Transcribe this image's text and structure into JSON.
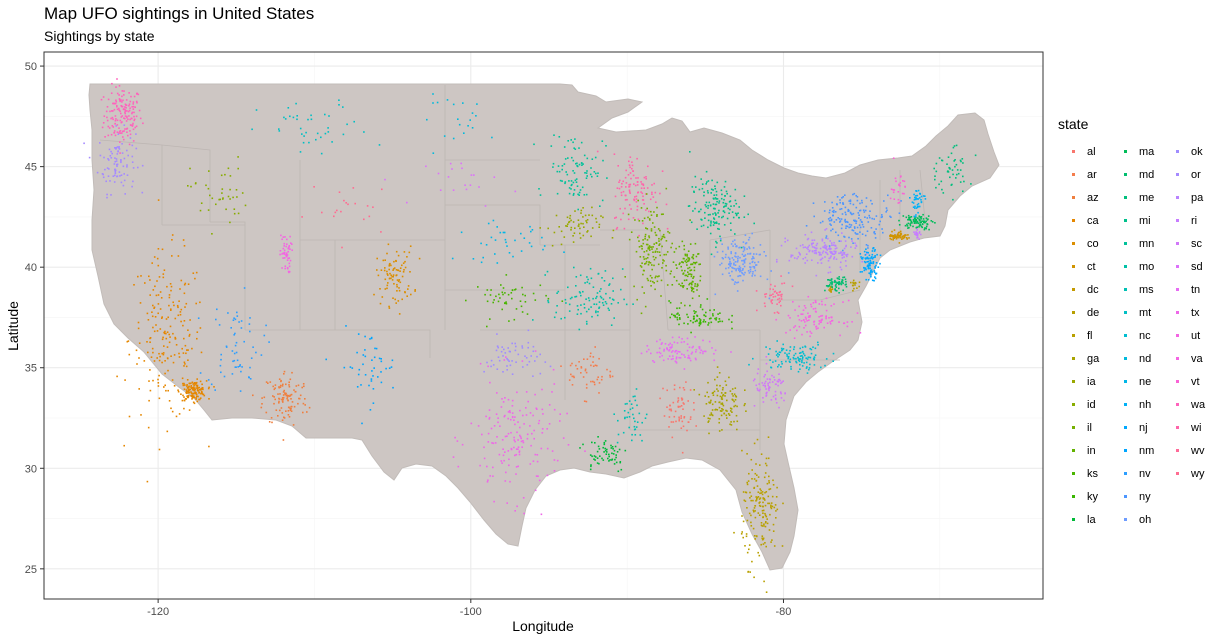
{
  "header": {
    "title": "Map UFO sightings in United States",
    "subtitle": "Sightings by state"
  },
  "axes": {
    "xlabel": "Longitude",
    "ylabel": "Latitude"
  },
  "colors": {
    "land": "#cdc6c3",
    "border": "#c2bcb9",
    "panel_border": "#333333",
    "grid_major": "#ebebeb",
    "grid_minor": "#f5f5f5"
  },
  "legend": {
    "title": "state",
    "columns": [
      [
        {
          "label": "al",
          "color": "#F8766D"
        },
        {
          "label": "ar",
          "color": "#F47D4D"
        },
        {
          "label": "az",
          "color": "#EF7F3E"
        },
        {
          "label": "ca",
          "color": "#E58700"
        },
        {
          "label": "co",
          "color": "#DB8E00"
        },
        {
          "label": "ct",
          "color": "#D09400"
        },
        {
          "label": "dc",
          "color": "#C49A00"
        },
        {
          "label": "de",
          "color": "#B79F00"
        },
        {
          "label": "fl",
          "color": "#B8A000"
        },
        {
          "label": "ga",
          "color": "#A9A400"
        },
        {
          "label": "ia",
          "color": "#99A800"
        },
        {
          "label": "id",
          "color": "#88AC00"
        },
        {
          "label": "il",
          "color": "#76B000"
        },
        {
          "label": "in",
          "color": "#62B200"
        },
        {
          "label": "ks",
          "color": "#49B500"
        },
        {
          "label": "ky",
          "color": "#39B600"
        },
        {
          "label": "la",
          "color": "#00BA38"
        }
      ],
      [
        {
          "label": "ma",
          "color": "#00BC59"
        },
        {
          "label": "md",
          "color": "#00BD6F"
        },
        {
          "label": "me",
          "color": "#00BF7D"
        },
        {
          "label": "mi",
          "color": "#00C08B"
        },
        {
          "label": "mn",
          "color": "#00C19A"
        },
        {
          "label": "mo",
          "color": "#00C1A7"
        },
        {
          "label": "ms",
          "color": "#00C0B4"
        },
        {
          "label": "mt",
          "color": "#00BFC4"
        },
        {
          "label": "nc",
          "color": "#00BDD0"
        },
        {
          "label": "nd",
          "color": "#00BADC"
        },
        {
          "label": "ne",
          "color": "#00B6E7"
        },
        {
          "label": "nh",
          "color": "#00B0F6"
        },
        {
          "label": "nj",
          "color": "#00A9FF"
        },
        {
          "label": "nm",
          "color": "#00A5FF"
        },
        {
          "label": "nv",
          "color": "#2C9EFF"
        },
        {
          "label": "ny",
          "color": "#4C96FF"
        },
        {
          "label": "oh",
          "color": "#6D9CFF"
        }
      ],
      [
        {
          "label": "ok",
          "color": "#9F8CFF"
        },
        {
          "label": "or",
          "color": "#A58AFF"
        },
        {
          "label": "pa",
          "color": "#B983FF"
        },
        {
          "label": "ri",
          "color": "#C77CFF"
        },
        {
          "label": "sc",
          "color": "#D177F8"
        },
        {
          "label": "sd",
          "color": "#DC71FA"
        },
        {
          "label": "tn",
          "color": "#E76BF3"
        },
        {
          "label": "tx",
          "color": "#EE67E8"
        },
        {
          "label": "ut",
          "color": "#F365E2"
        },
        {
          "label": "va",
          "color": "#F564E3"
        },
        {
          "label": "vt",
          "color": "#FA62D5"
        },
        {
          "label": "wa",
          "color": "#FF62BC"
        },
        {
          "label": "wi",
          "color": "#FF65AA"
        },
        {
          "label": "wv",
          "color": "#FF6A98"
        },
        {
          "label": "wy",
          "color": "#FF6C91"
        }
      ]
    ]
  },
  "chart_data": {
    "type": "scatter",
    "title": "Map UFO sightings in United States",
    "subtitle": "Sightings by state",
    "xlabel": "Longitude",
    "ylabel": "Latitude",
    "xlim": [
      -127.3,
      -63.4
    ],
    "ylim": [
      23.5,
      50.7
    ],
    "x_ticks": [
      -120,
      -100,
      -80
    ],
    "y_ticks": [
      25,
      30,
      35,
      40,
      45,
      50
    ],
    "grid": true,
    "legend_position": "right",
    "clusters": [
      {
        "state": "wa",
        "lon": -122.3,
        "lat": 47.6,
        "spread": [
          1.0,
          1.2
        ],
        "n": 160
      },
      {
        "state": "or",
        "lon": -122.7,
        "lat": 45.3,
        "spread": [
          1.0,
          1.3
        ],
        "n": 90
      },
      {
        "state": "ca",
        "lon": -119.5,
        "lat": 36.5,
        "spread": [
          2.0,
          3.5
        ],
        "n": 200
      },
      {
        "state": "ca",
        "lon": -117.8,
        "lat": 33.9,
        "spread": [
          0.7,
          0.4
        ],
        "n": 140
      },
      {
        "state": "az",
        "lon": -111.9,
        "lat": 33.5,
        "spread": [
          1.2,
          1.2
        ],
        "n": 110
      },
      {
        "state": "nv",
        "lon": -115.1,
        "lat": 36.2,
        "spread": [
          1.5,
          2.0
        ],
        "n": 60
      },
      {
        "state": "ut",
        "lon": -111.9,
        "lat": 40.7,
        "spread": [
          0.3,
          0.8
        ],
        "n": 50
      },
      {
        "state": "id",
        "lon": -116.2,
        "lat": 43.7,
        "spread": [
          1.5,
          1.5
        ],
        "n": 40
      },
      {
        "state": "mt",
        "lon": -110.0,
        "lat": 46.8,
        "spread": [
          3.0,
          1.2
        ],
        "n": 40
      },
      {
        "state": "co",
        "lon": -104.9,
        "lat": 39.6,
        "spread": [
          1.0,
          1.2
        ],
        "n": 90
      },
      {
        "state": "nm",
        "lon": -106.6,
        "lat": 35.1,
        "spread": [
          1.5,
          1.5
        ],
        "n": 45
      },
      {
        "state": "wy",
        "lon": -107.5,
        "lat": 42.9,
        "spread": [
          2.5,
          1.2
        ],
        "n": 20
      },
      {
        "state": "nd",
        "lon": -100.4,
        "lat": 47.4,
        "spread": [
          2.5,
          1.0
        ],
        "n": 20
      },
      {
        "state": "sd",
        "lon": -99.9,
        "lat": 44.3,
        "spread": [
          2.5,
          1.0
        ],
        "n": 20
      },
      {
        "state": "ne",
        "lon": -98.0,
        "lat": 41.3,
        "spread": [
          2.5,
          0.8
        ],
        "n": 35
      },
      {
        "state": "ks",
        "lon": -97.5,
        "lat": 38.5,
        "spread": [
          2.0,
          0.8
        ],
        "n": 50
      },
      {
        "state": "ok",
        "lon": -97.4,
        "lat": 35.5,
        "spread": [
          1.5,
          0.9
        ],
        "n": 55
      },
      {
        "state": "tx",
        "lon": -97.2,
        "lat": 31.5,
        "spread": [
          2.5,
          2.5
        ],
        "n": 170
      },
      {
        "state": "mn",
        "lon": -93.3,
        "lat": 45.0,
        "spread": [
          1.5,
          1.5
        ],
        "n": 90
      },
      {
        "state": "ia",
        "lon": -93.5,
        "lat": 42.0,
        "spread": [
          1.5,
          0.8
        ],
        "n": 60
      },
      {
        "state": "mo",
        "lon": -92.5,
        "lat": 38.5,
        "spread": [
          1.8,
          1.2
        ],
        "n": 100
      },
      {
        "state": "ar",
        "lon": -92.4,
        "lat": 34.8,
        "spread": [
          1.2,
          1.0
        ],
        "n": 50
      },
      {
        "state": "la",
        "lon": -91.5,
        "lat": 30.8,
        "spread": [
          1.3,
          0.8
        ],
        "n": 60
      },
      {
        "state": "wi",
        "lon": -89.5,
        "lat": 43.9,
        "spread": [
          1.2,
          1.5
        ],
        "n": 110
      },
      {
        "state": "il",
        "lon": -88.5,
        "lat": 41.0,
        "spread": [
          1.0,
          1.8
        ],
        "n": 150
      },
      {
        "state": "ms",
        "lon": -89.7,
        "lat": 32.5,
        "spread": [
          0.8,
          1.2
        ],
        "n": 40
      },
      {
        "state": "mi",
        "lon": -84.5,
        "lat": 43.0,
        "spread": [
          1.3,
          1.3
        ],
        "n": 150
      },
      {
        "state": "in",
        "lon": -86.2,
        "lat": 39.8,
        "spread": [
          0.8,
          1.2
        ],
        "n": 110
      },
      {
        "state": "ky",
        "lon": -85.5,
        "lat": 37.6,
        "spread": [
          1.5,
          0.6
        ],
        "n": 80
      },
      {
        "state": "tn",
        "lon": -86.5,
        "lat": 35.9,
        "spread": [
          2.0,
          0.5
        ],
        "n": 100
      },
      {
        "state": "al",
        "lon": -86.8,
        "lat": 33.0,
        "spread": [
          0.8,
          1.2
        ],
        "n": 60
      },
      {
        "state": "ga",
        "lon": -84.0,
        "lat": 33.3,
        "spread": [
          1.0,
          1.2
        ],
        "n": 110
      },
      {
        "state": "fl",
        "lon": -81.5,
        "lat": 28.0,
        "spread": [
          1.0,
          2.2
        ],
        "n": 170
      },
      {
        "state": "sc",
        "lon": -80.9,
        "lat": 34.0,
        "spread": [
          1.0,
          0.8
        ],
        "n": 70
      },
      {
        "state": "nc",
        "lon": -79.3,
        "lat": 35.6,
        "spread": [
          1.8,
          0.6
        ],
        "n": 110
      },
      {
        "state": "va",
        "lon": -78.0,
        "lat": 37.5,
        "spread": [
          1.5,
          0.7
        ],
        "n": 100
      },
      {
        "state": "wv",
        "lon": -80.6,
        "lat": 38.6,
        "spread": [
          0.8,
          0.6
        ],
        "n": 45
      },
      {
        "state": "oh",
        "lon": -82.8,
        "lat": 40.3,
        "spread": [
          1.2,
          1.0
        ],
        "n": 160
      },
      {
        "state": "pa",
        "lon": -77.5,
        "lat": 40.8,
        "spread": [
          1.8,
          0.7
        ],
        "n": 160
      },
      {
        "state": "md",
        "lon": -76.7,
        "lat": 39.2,
        "spread": [
          0.6,
          0.3
        ],
        "n": 60
      },
      {
        "state": "dc",
        "lon": -77.0,
        "lat": 38.9,
        "spread": [
          0.1,
          0.1
        ],
        "n": 10
      },
      {
        "state": "de",
        "lon": -75.5,
        "lat": 39.2,
        "spread": [
          0.2,
          0.3
        ],
        "n": 15
      },
      {
        "state": "nj",
        "lon": -74.5,
        "lat": 40.2,
        "spread": [
          0.5,
          0.6
        ],
        "n": 90
      },
      {
        "state": "ny",
        "lon": -75.5,
        "lat": 42.5,
        "spread": [
          2.0,
          1.0
        ],
        "n": 170
      },
      {
        "state": "ct",
        "lon": -72.7,
        "lat": 41.6,
        "spread": [
          0.5,
          0.2
        ],
        "n": 60
      },
      {
        "state": "ri",
        "lon": -71.5,
        "lat": 41.7,
        "spread": [
          0.2,
          0.2
        ],
        "n": 20
      },
      {
        "state": "ma",
        "lon": -71.5,
        "lat": 42.3,
        "spread": [
          0.8,
          0.3
        ],
        "n": 90
      },
      {
        "state": "vt",
        "lon": -72.7,
        "lat": 44.0,
        "spread": [
          0.4,
          0.8
        ],
        "n": 25
      },
      {
        "state": "nh",
        "lon": -71.5,
        "lat": 43.3,
        "spread": [
          0.4,
          0.6
        ],
        "n": 40
      },
      {
        "state": "me",
        "lon": -69.5,
        "lat": 44.8,
        "spread": [
          1.2,
          1.0
        ],
        "n": 50
      }
    ]
  }
}
